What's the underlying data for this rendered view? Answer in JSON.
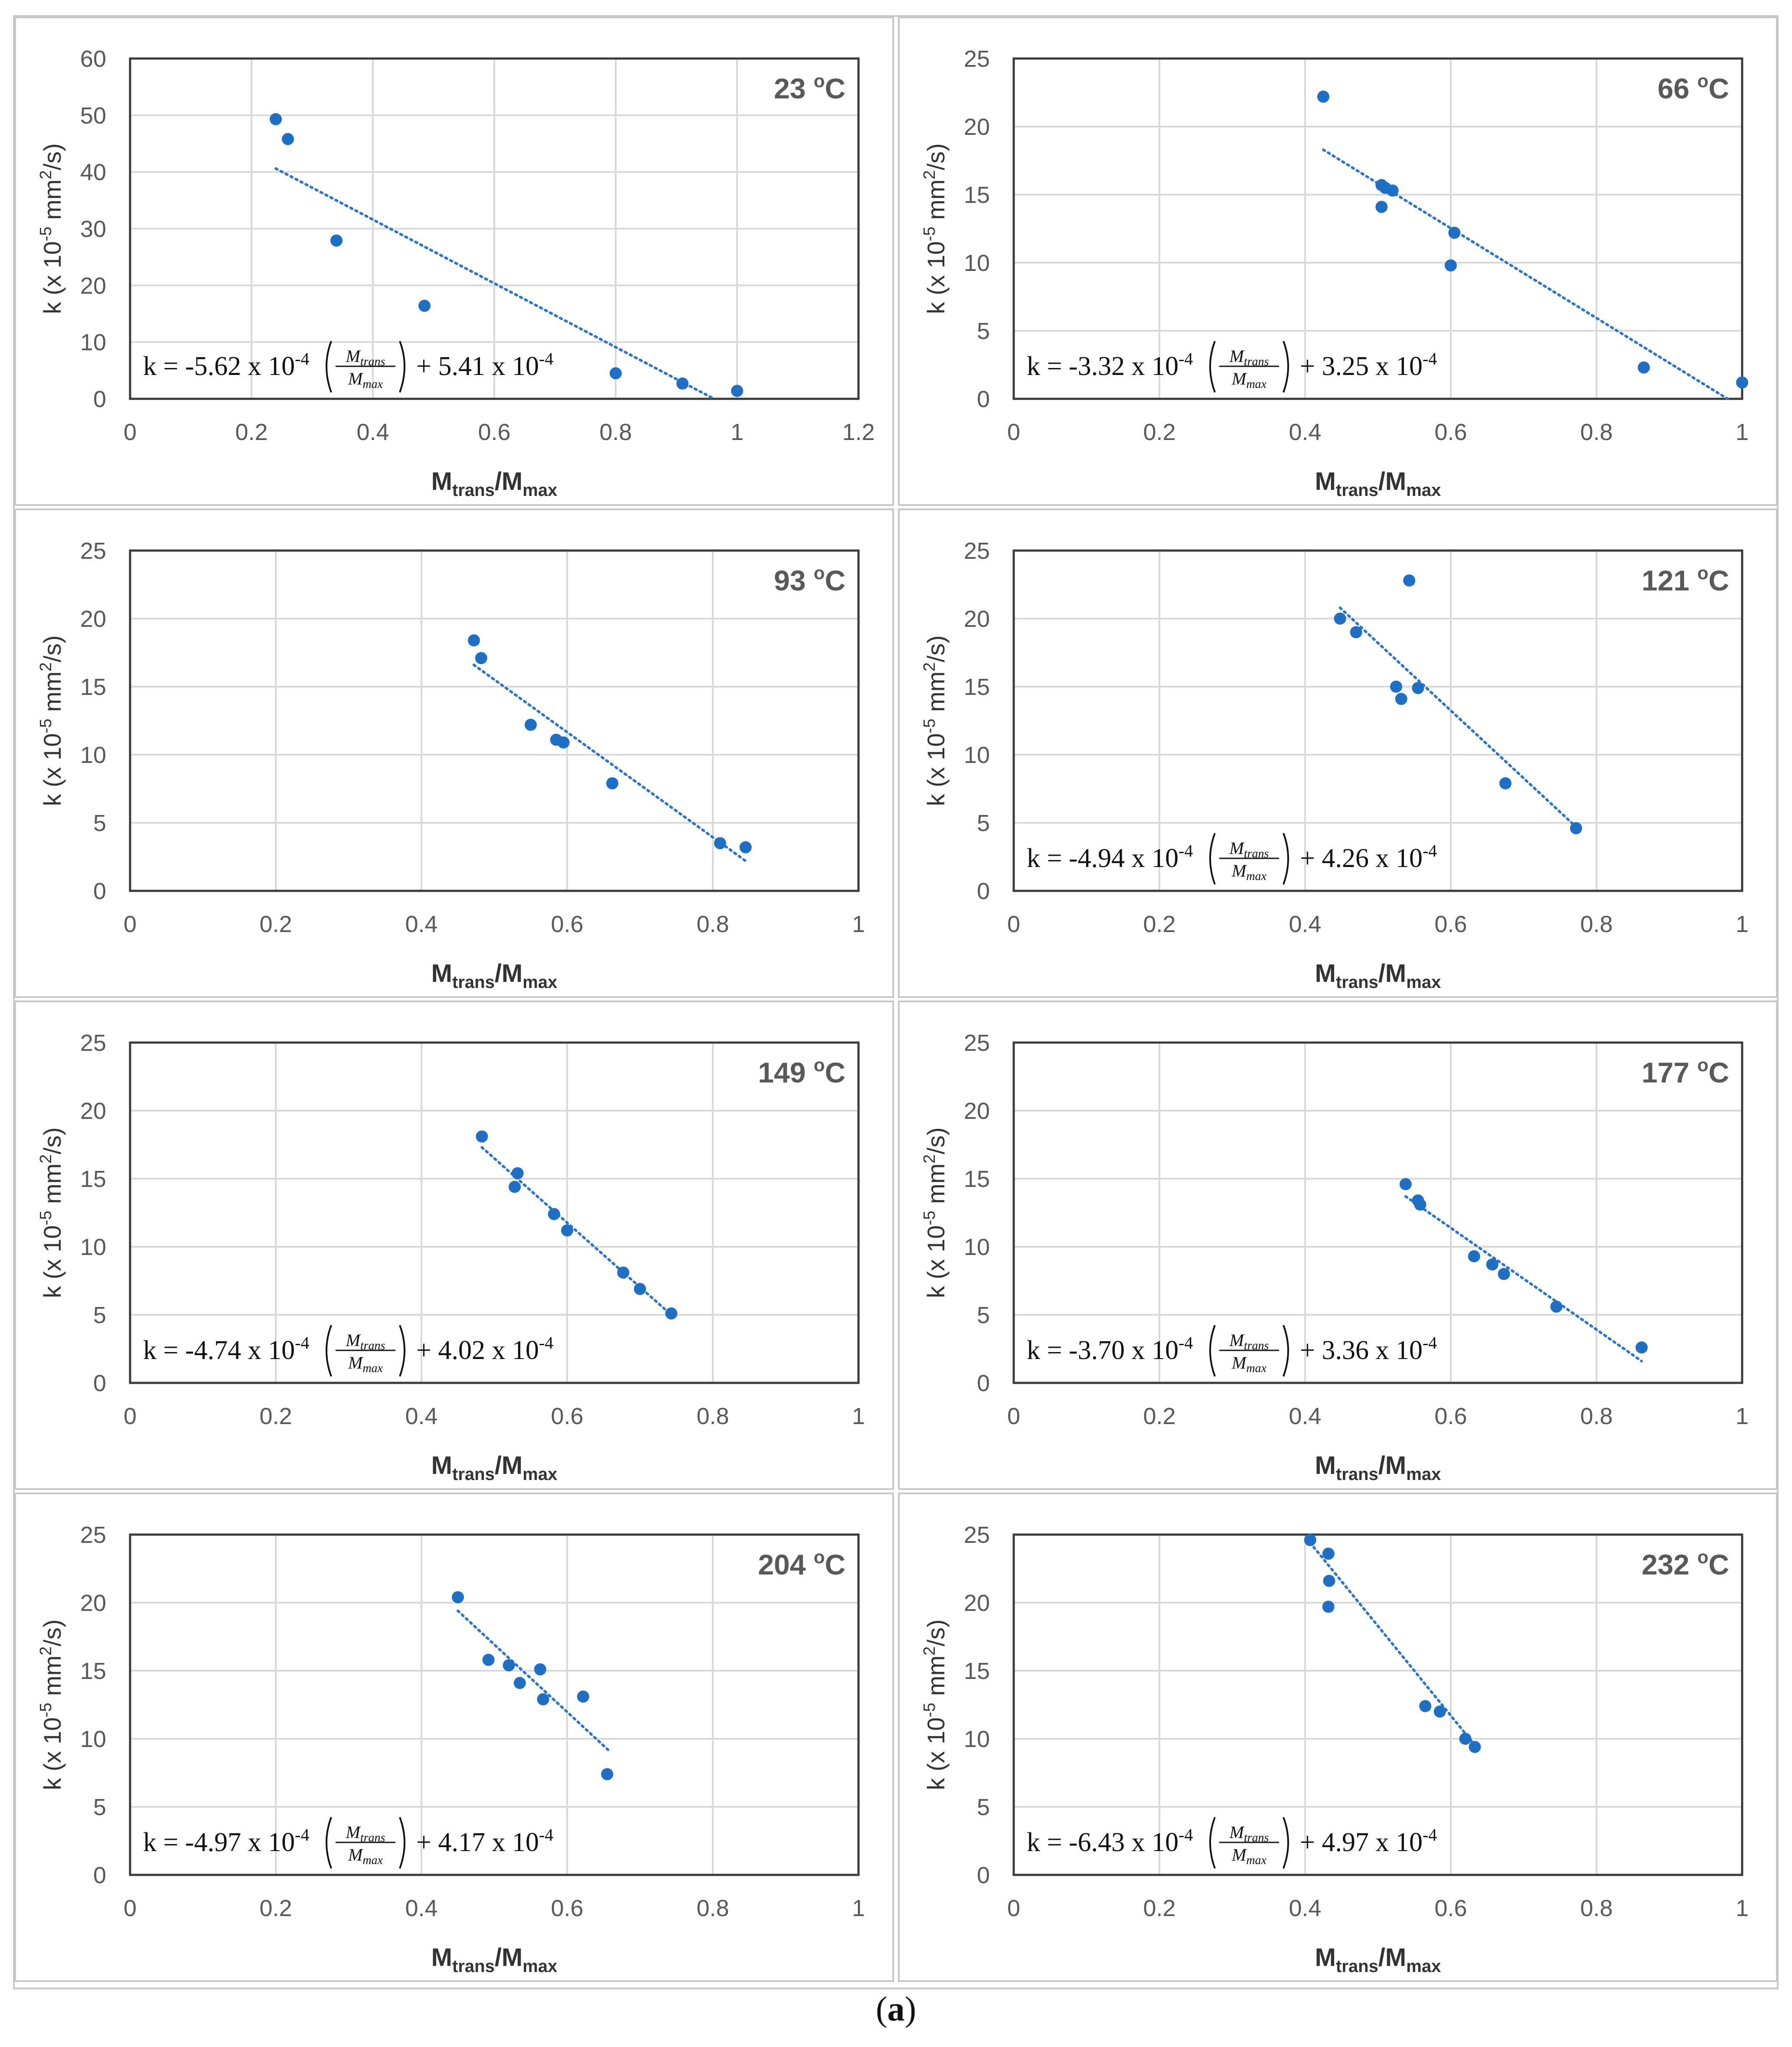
{
  "caption": {
    "open": "(",
    "letter": "a",
    "close": ")"
  },
  "colors": {
    "point": "#1f6fc5",
    "trend": "#2e75c8",
    "grid": "#d9d9d9",
    "frame": "#3a3a3a",
    "panel_border": "#c8c8c8"
  },
  "labels": {
    "ylabel_html_parts": [
      "k (x 10",
      "-5",
      " mm",
      "2",
      "/s)"
    ],
    "xlabel_parts": [
      "M",
      "trans",
      "/M",
      "max"
    ],
    "eq_fraction_num_parts": [
      "M",
      "trans"
    ],
    "eq_fraction_den_parts": [
      "M",
      "max"
    ]
  },
  "chart_data": [
    {
      "type": "scatter",
      "title": "23 °C",
      "temp_parts": [
        "23 ",
        "o",
        "C"
      ],
      "xlabel": "Mtrans/Mmax",
      "ylabel": "k (x 10-5 mm2/s)",
      "xlim": [
        0,
        1.2
      ],
      "ylim": [
        0,
        60
      ],
      "xticks": [
        0,
        0.2,
        0.4,
        0.6,
        0.8,
        1,
        1.2
      ],
      "yticks": [
        0,
        10,
        20,
        30,
        40,
        50,
        60
      ],
      "xtick_labels": [
        "0",
        "0.2",
        "0.4",
        "0.6",
        "0.8",
        "1",
        "1.2"
      ],
      "ytick_labels": [
        "0",
        "10",
        "20",
        "30",
        "40",
        "50",
        "60"
      ],
      "x": [
        0.24,
        0.26,
        0.34,
        0.485,
        0.8,
        0.91,
        1.0
      ],
      "y": [
        49.3,
        45.8,
        27.9,
        16.4,
        4.5,
        2.7,
        1.4
      ],
      "trend": {
        "x": [
          0.24,
          0.962
        ],
        "y": [
          40.6,
          0
        ]
      },
      "equation": {
        "slope": "-5.62",
        "intercept": "5.41",
        "parts": [
          "k = ",
          "-5.62",
          " x 10",
          "-4",
          " + ",
          "5.41",
          " x 10",
          "-4"
        ]
      },
      "eq_position": "bottom-left"
    },
    {
      "type": "scatter",
      "title": "66 °C",
      "temp_parts": [
        "66 ",
        "o",
        "C"
      ],
      "xlabel": "Mtrans/Mmax",
      "ylabel": "k (x 10-5 mm2/s)",
      "xlim": [
        0,
        1
      ],
      "ylim": [
        0,
        25
      ],
      "xticks": [
        0,
        0.2,
        0.4,
        0.6,
        0.8,
        1
      ],
      "yticks": [
        0,
        5,
        10,
        15,
        20,
        25
      ],
      "xtick_labels": [
        "0",
        "0.2",
        "0.4",
        "0.6",
        "0.8",
        "1"
      ],
      "ytick_labels": [
        "0",
        "5",
        "10",
        "15",
        "20",
        "25"
      ],
      "x": [
        0.425,
        0.505,
        0.51,
        0.52,
        0.505,
        0.6,
        0.605,
        0.865,
        1.0
      ],
      "y": [
        22.2,
        15.7,
        15.5,
        15.3,
        14.1,
        9.8,
        12.2,
        2.3,
        1.2
      ],
      "trend": {
        "x": [
          0.425,
          0.98
        ],
        "y": [
          18.3,
          0
        ]
      },
      "equation": {
        "slope": "-3.32",
        "intercept": "3.25",
        "parts": [
          "k = ",
          "-3.32",
          " x 10",
          "-4",
          " + ",
          "3.25",
          " x 10",
          "-4"
        ]
      },
      "eq_position": "bottom-left"
    },
    {
      "type": "scatter",
      "title": "93 °C",
      "temp_parts": [
        "93 ",
        "o",
        "C"
      ],
      "xlabel": "Mtrans/Mmax",
      "ylabel": "k (x 10-5 mm2/s)",
      "xlim": [
        0,
        1
      ],
      "ylim": [
        0,
        25
      ],
      "xticks": [
        0,
        0.2,
        0.4,
        0.6,
        0.8,
        1
      ],
      "yticks": [
        0,
        5,
        10,
        15,
        20,
        25
      ],
      "xtick_labels": [
        "0",
        "0.2",
        "0.4",
        "0.6",
        "0.8",
        "1"
      ],
      "ytick_labels": [
        "0",
        "5",
        "10",
        "15",
        "20",
        "25"
      ],
      "x": [
        0.472,
        0.482,
        0.55,
        0.585,
        0.595,
        0.662,
        0.81,
        0.845
      ],
      "y": [
        18.4,
        17.1,
        12.2,
        11.1,
        10.9,
        7.9,
        3.5,
        3.2
      ],
      "trend": {
        "x": [
          0.472,
          0.845
        ],
        "y": [
          16.6,
          2.2
        ]
      },
      "equation": null,
      "eq_position": "none"
    },
    {
      "type": "scatter",
      "title": "121 °C",
      "temp_parts": [
        "121 ",
        "o",
        "C"
      ],
      "xlabel": "Mtrans/Mmax",
      "ylabel": "k (x 10-5 mm2/s)",
      "xlim": [
        0,
        1
      ],
      "ylim": [
        0,
        25
      ],
      "xticks": [
        0,
        0.2,
        0.4,
        0.6,
        0.8,
        1
      ],
      "yticks": [
        0,
        5,
        10,
        15,
        20,
        25
      ],
      "xtick_labels": [
        "0",
        "0.2",
        "0.4",
        "0.6",
        "0.8",
        "1"
      ],
      "ytick_labels": [
        "0",
        "5",
        "10",
        "15",
        "20",
        "25"
      ],
      "x": [
        0.448,
        0.47,
        0.525,
        0.532,
        0.543,
        0.555,
        0.675,
        0.772
      ],
      "y": [
        20.0,
        19.0,
        15.0,
        14.1,
        22.8,
        14.9,
        7.9,
        4.6
      ],
      "trend": {
        "x": [
          0.448,
          0.772
        ],
        "y": [
          20.8,
          4.7
        ]
      },
      "equation": {
        "slope": "-4.94",
        "intercept": "4.26",
        "parts": [
          "k = ",
          "-4.94",
          " x 10",
          "-4",
          " + ",
          "4.26",
          " x 10",
          "-4"
        ]
      },
      "eq_position": "bottom-left"
    },
    {
      "type": "scatter",
      "title": "149 °C",
      "temp_parts": [
        "149 ",
        "o",
        "C"
      ],
      "xlabel": "Mtrans/Mmax",
      "ylabel": "k (x 10-5 mm2/s)",
      "xlim": [
        0,
        1
      ],
      "ylim": [
        0,
        25
      ],
      "xticks": [
        0,
        0.2,
        0.4,
        0.6,
        0.8,
        1
      ],
      "yticks": [
        0,
        5,
        10,
        15,
        20,
        25
      ],
      "xtick_labels": [
        "0",
        "0.2",
        "0.4",
        "0.6",
        "0.8",
        "1"
      ],
      "ytick_labels": [
        "0",
        "5",
        "10",
        "15",
        "20",
        "25"
      ],
      "x": [
        0.483,
        0.528,
        0.532,
        0.582,
        0.6,
        0.677,
        0.7,
        0.743
      ],
      "y": [
        18.1,
        14.4,
        15.4,
        12.4,
        11.2,
        8.1,
        6.9,
        5.1
      ],
      "trend": {
        "x": [
          0.483,
          0.743
        ],
        "y": [
          17.3,
          5.0
        ]
      },
      "equation": {
        "slope": "-4.74",
        "intercept": "4.02",
        "parts": [
          "k = ",
          "-4.74",
          " x 10",
          "-4",
          " + ",
          "4.02",
          " x  10",
          "-4"
        ]
      },
      "eq_position": "bottom-left"
    },
    {
      "type": "scatter",
      "title": "177 °C",
      "temp_parts": [
        "177 ",
        "o",
        "C"
      ],
      "xlabel": "Mtrans/Mmax",
      "ylabel": "k (x 10-5 mm2/s)",
      "xlim": [
        0,
        1
      ],
      "ylim": [
        0,
        25
      ],
      "xticks": [
        0,
        0.2,
        0.4,
        0.6,
        0.8,
        1
      ],
      "yticks": [
        0,
        5,
        10,
        15,
        20,
        25
      ],
      "xtick_labels": [
        "0",
        "0.2",
        "0.4",
        "0.6",
        "0.8",
        "1"
      ],
      "ytick_labels": [
        "0",
        "5",
        "10",
        "15",
        "20",
        "25"
      ],
      "x": [
        0.538,
        0.555,
        0.558,
        0.632,
        0.657,
        0.673,
        0.745,
        0.862
      ],
      "y": [
        14.6,
        13.4,
        13.1,
        9.3,
        8.7,
        8.0,
        5.6,
        2.6
      ],
      "trend": {
        "x": [
          0.538,
          0.862
        ],
        "y": [
          13.7,
          1.6
        ]
      },
      "equation": {
        "slope": "-3.70",
        "intercept": "3.36",
        "parts": [
          "k = ",
          "-3.70",
          " x 10",
          "-4",
          " + ",
          "3.36",
          " x  10",
          "-4"
        ]
      },
      "eq_position": "bottom-left"
    },
    {
      "type": "scatter",
      "title": "204 °C",
      "temp_parts": [
        "204 ",
        "o",
        "C"
      ],
      "xlabel": "Mtrans/Mmax",
      "ylabel": "k (x 10-5 mm2/s)",
      "xlim": [
        0,
        1
      ],
      "ylim": [
        0,
        25
      ],
      "xticks": [
        0,
        0.2,
        0.4,
        0.6,
        0.8,
        1
      ],
      "yticks": [
        0,
        5,
        10,
        15,
        20,
        25
      ],
      "xtick_labels": [
        "0",
        "0.2",
        "0.4",
        "0.6",
        "0.8",
        "1"
      ],
      "ytick_labels": [
        "0",
        "5",
        "10",
        "15",
        "20",
        "25"
      ],
      "x": [
        0.45,
        0.492,
        0.52,
        0.535,
        0.563,
        0.567,
        0.622,
        0.655
      ],
      "y": [
        20.4,
        15.8,
        15.4,
        14.1,
        15.1,
        12.9,
        13.1,
        7.4
      ],
      "trend": {
        "x": [
          0.45,
          0.658
        ],
        "y": [
          19.4,
          9.1
        ]
      },
      "equation": {
        "slope": "-4.97",
        "intercept": "4.17",
        "parts": [
          "k = ",
          "-4.97",
          " x 10",
          "-4",
          " + ",
          "4.17",
          " x  10",
          "-4"
        ]
      },
      "eq_position": "bottom-left"
    },
    {
      "type": "scatter",
      "title": "232 °C",
      "temp_parts": [
        "232 ",
        "o",
        "C"
      ],
      "xlabel": "Mtrans/Mmax",
      "ylabel": "k (x 10-5 mm2/s)",
      "xlim": [
        0,
        1
      ],
      "ylim": [
        0,
        25
      ],
      "xticks": [
        0,
        0.2,
        0.4,
        0.6,
        0.8,
        1
      ],
      "yticks": [
        0,
        5,
        10,
        15,
        20,
        25
      ],
      "xtick_labels": [
        "0",
        "0.2",
        "0.4",
        "0.6",
        "0.8",
        "1"
      ],
      "ytick_labels": [
        "0",
        "5",
        "10",
        "15",
        "20",
        "25"
      ],
      "x": [
        0.407,
        0.432,
        0.433,
        0.432,
        0.565,
        0.585,
        0.62,
        0.633
      ],
      "y": [
        24.6,
        23.6,
        21.6,
        19.7,
        12.4,
        12.0,
        10.0,
        9.4
      ],
      "trend": {
        "x": [
          0.407,
          0.632
        ],
        "y": [
          24.4,
          9.6
        ]
      },
      "equation": {
        "slope": "-6.43",
        "intercept": "4.97",
        "parts": [
          "k = ",
          "-6.43",
          " x 10",
          "-4",
          " + ",
          "4.97",
          " x  10",
          "-4"
        ]
      },
      "eq_position": "bottom-left"
    }
  ]
}
